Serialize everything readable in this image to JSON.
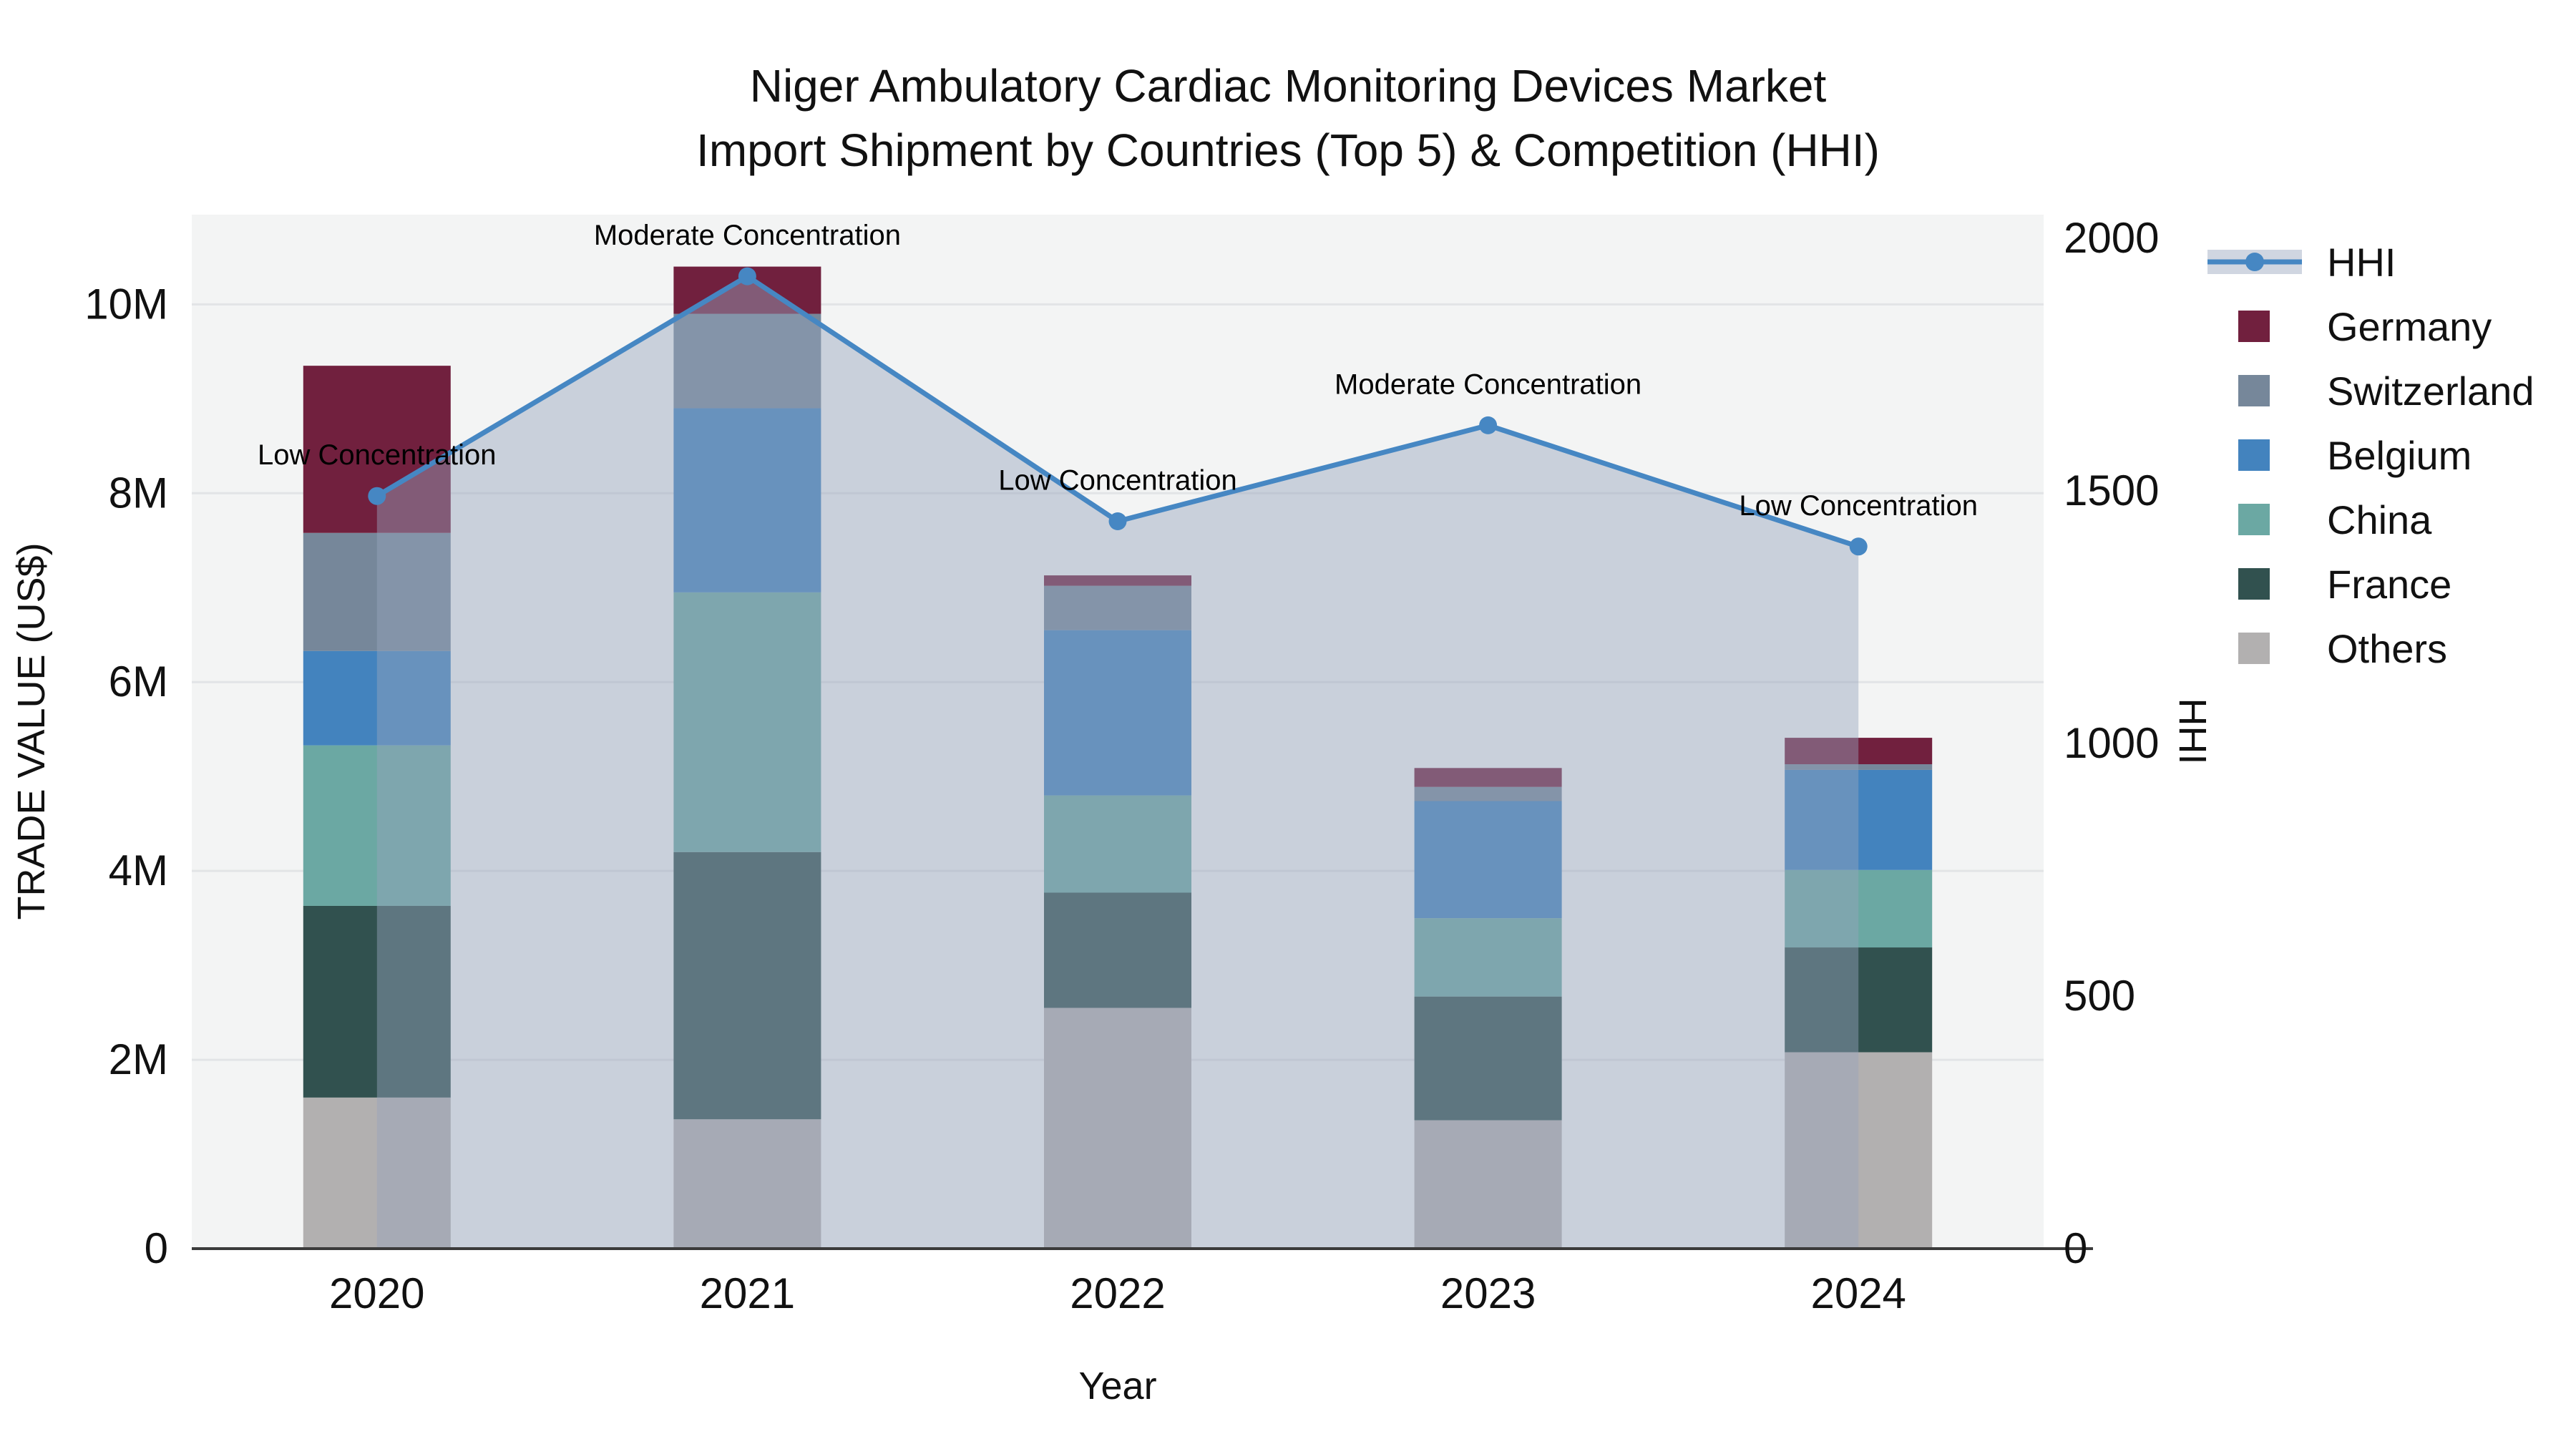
{
  "title": {
    "line1": "Niger Ambulatory Cardiac Monitoring Devices Market",
    "line2": "Import Shipment by Countries (Top 5) & Competition (HHI)"
  },
  "axes": {
    "x": {
      "title": "Year"
    },
    "y_left": {
      "title": "TRADE VALUE (US$)"
    },
    "y_right": {
      "title": "HHI"
    }
  },
  "legend": {
    "items": [
      "HHI",
      "Germany",
      "Switzerland",
      "Belgium",
      "China",
      "France",
      "Others"
    ]
  },
  "colors": {
    "plot_background": "#f3f4f4",
    "gridline": "#e2e4e6",
    "axis_line": "#3b3b3b",
    "hhi_line": "#4687c3",
    "hhi_area_fill": "rgba(150,164,188,0.45)",
    "Germany": "#71203e",
    "Switzerland": "#76879a",
    "Belgium": "#4383be",
    "China": "#6ba8a3",
    "France": "#31514f",
    "Others": "#b2b0b0"
  },
  "chart_data": {
    "type": "bar+line",
    "title": "Niger Ambulatory Cardiac Monitoring Devices Market — Import Shipment by Countries (Top 5) & Competition (HHI)",
    "categories": [
      "2020",
      "2021",
      "2022",
      "2023",
      "2024"
    ],
    "xlabel": "Year",
    "ylabel_left": "TRADE VALUE (US$)",
    "ylabel_right": "HHI",
    "y_left_ticks": [
      {
        "value": 0,
        "label": "0"
      },
      {
        "value": 2000000,
        "label": "2M"
      },
      {
        "value": 4000000,
        "label": "4M"
      },
      {
        "value": 6000000,
        "label": "6M"
      },
      {
        "value": 8000000,
        "label": "8M"
      },
      {
        "value": 10000000,
        "label": "10M"
      }
    ],
    "y_right_ticks": [
      {
        "value": 0,
        "label": "0"
      },
      {
        "value": 500,
        "label": "500"
      },
      {
        "value": 1000,
        "label": "1000"
      },
      {
        "value": 1500,
        "label": "1500"
      },
      {
        "value": 2000,
        "label": "2000"
      }
    ],
    "y_left_range": [
      0,
      10950000
    ],
    "y_right_range": [
      0,
      2047
    ],
    "bar_series_bottom_to_top": [
      {
        "name": "Others",
        "values": [
          1600000,
          1370000,
          2550000,
          1360000,
          2080000
        ]
      },
      {
        "name": "France",
        "values": [
          2030000,
          2830000,
          1220000,
          1310000,
          1110000
        ]
      },
      {
        "name": "China",
        "values": [
          1700000,
          2750000,
          1030000,
          830000,
          820000
        ]
      },
      {
        "name": "Belgium",
        "values": [
          1000000,
          1950000,
          1750000,
          1240000,
          1060000
        ]
      },
      {
        "name": "Switzerland",
        "values": [
          1250000,
          1000000,
          470000,
          150000,
          60000
        ]
      },
      {
        "name": "Germany",
        "values": [
          1770000,
          500000,
          110000,
          200000,
          280000
        ]
      }
    ],
    "bar_totals": [
      9350000,
      10400000,
      7130000,
      5090000,
      5410000
    ],
    "line_series": {
      "name": "HHI",
      "values": [
        1490,
        1925,
        1440,
        1630,
        1390
      ]
    },
    "annotations": [
      {
        "x": "2020",
        "text": "Low Concentration"
      },
      {
        "x": "2021",
        "text": "Moderate Concentration"
      },
      {
        "x": "2022",
        "text": "Low Concentration"
      },
      {
        "x": "2023",
        "text": "Moderate Concentration"
      },
      {
        "x": "2024",
        "text": "Low Concentration"
      }
    ],
    "grid": "horizontal",
    "legend_position": "right"
  }
}
